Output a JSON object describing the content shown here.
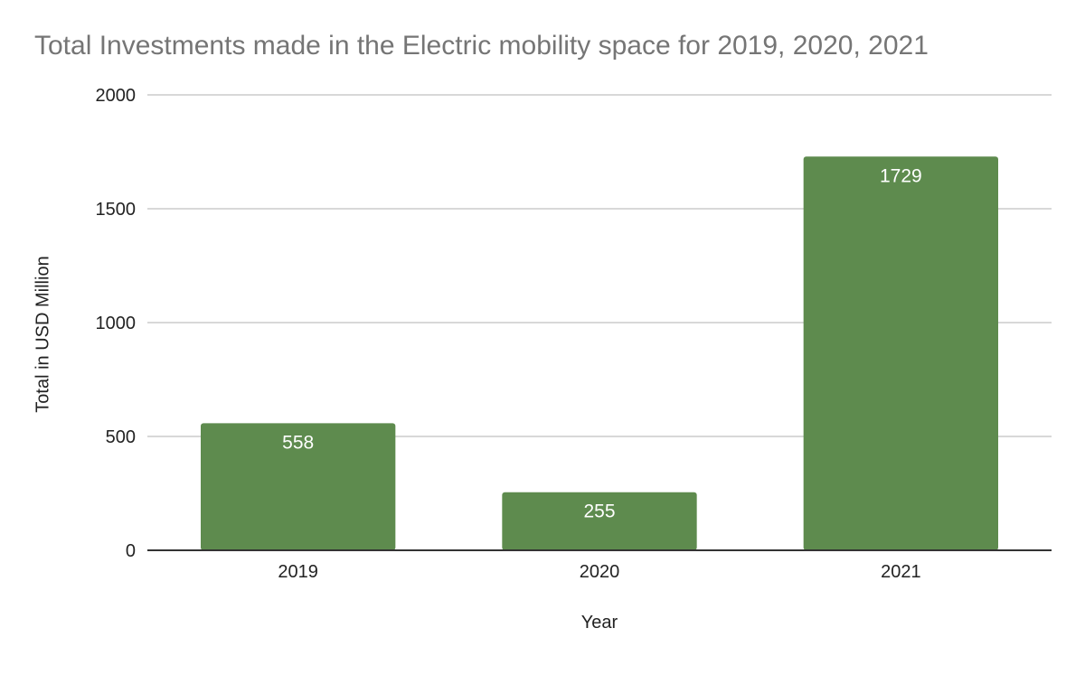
{
  "chart_data": {
    "type": "bar",
    "title": "Total Investments made in the Electric mobility space for 2019, 2020, 2021",
    "xlabel": "Year",
    "ylabel": "Total in USD Million",
    "categories": [
      "2019",
      "2020",
      "2021"
    ],
    "values": [
      558,
      255,
      1729
    ],
    "data_labels": [
      "558",
      "255",
      "1729"
    ],
    "ylim": [
      0,
      2000
    ],
    "yticks": [
      0,
      500,
      1000,
      1500,
      2000
    ],
    "ytick_labels": [
      "0",
      "500",
      "1000",
      "1500",
      "2000"
    ],
    "grid": true,
    "legend": "none",
    "bar_color": "#5e8b4e",
    "grid_color": "#cccccc",
    "axis_color": "#333333",
    "label_color": "#ffffff",
    "title_color": "#757575"
  }
}
